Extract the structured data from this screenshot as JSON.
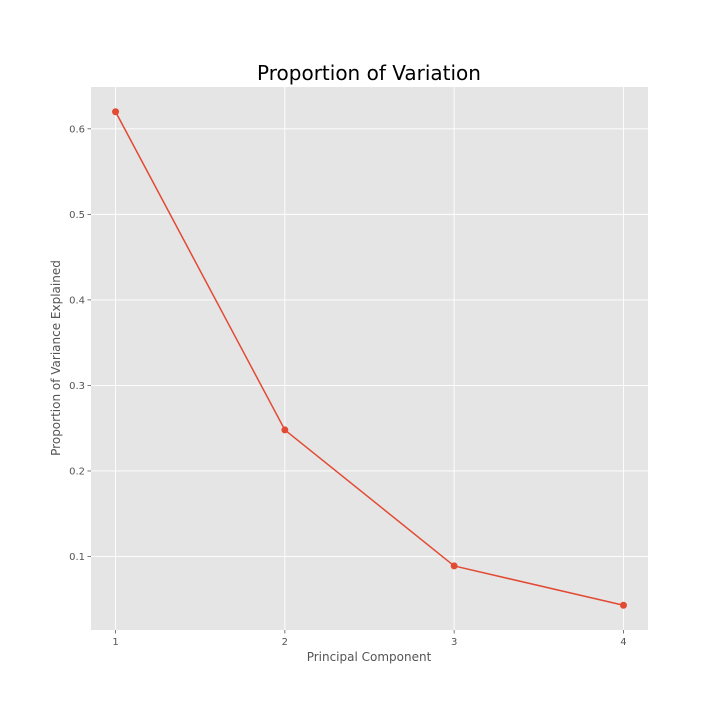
{
  "chart_data": {
    "type": "line",
    "title": "Proportion of Variation",
    "xlabel": "Principal Component",
    "ylabel": "Proportion of Variance Explained",
    "x": [
      1,
      2,
      3,
      4
    ],
    "series": [
      {
        "values": [
          0.62,
          0.248,
          0.089,
          0.043
        ],
        "color": "#E24A33",
        "marker": "circle"
      }
    ],
    "xticks": [
      1,
      2,
      3,
      4
    ],
    "xtick_labels": [
      "1",
      "2",
      "3",
      "4"
    ],
    "yticks": [
      0.1,
      0.2,
      0.3,
      0.4,
      0.5,
      0.6
    ],
    "ytick_labels": [
      "0.1",
      "0.2",
      "0.3",
      "0.4",
      "0.5",
      "0.6"
    ],
    "xlim": [
      0.855,
      4.145
    ],
    "ylim": [
      0.0141,
      0.6489
    ],
    "grid": true,
    "style": {
      "plot_background": "#E5E5E5",
      "grid_color": "#FFFFFF",
      "tick_color": "#555555"
    }
  }
}
